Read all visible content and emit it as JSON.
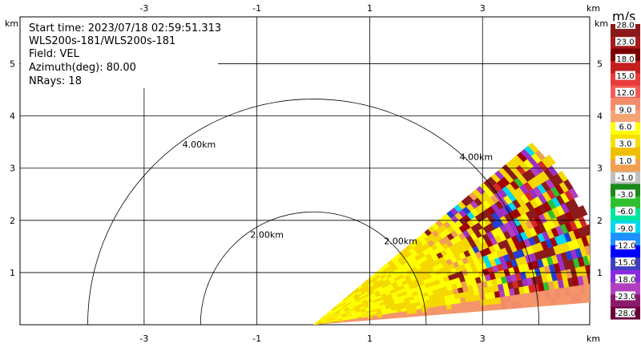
{
  "info": {
    "start_time": "Start time: 2023/07/18 02:59:51.313",
    "instrument": "WLS200s-181/WLS200s-181",
    "field": "Field: VEL",
    "azimuth": "Azimuth(deg): 80.00",
    "nrays": "NRays: 18"
  },
  "chart_data": {
    "type": "heatmap",
    "projection": "RHI-style sector plot",
    "x_unit": "km",
    "y_unit": "km",
    "x_ticks": [
      "-3",
      "-1",
      "1",
      "3"
    ],
    "y_ticks": [
      "1",
      "2",
      "3",
      "4",
      "5"
    ],
    "xlim": [
      -5.2,
      4.9
    ],
    "ylim": [
      0,
      5.9
    ],
    "grid": true,
    "range_rings": [
      {
        "radius_km": 2.0,
        "label": "2.00km"
      },
      {
        "radius_km": 4.0,
        "label": "4.00km"
      }
    ],
    "sector": {
      "az_min_deg": 5,
      "az_max_deg": 42,
      "max_range_km": 5.3
    },
    "colorbar": {
      "title": "m/s",
      "tick_labels": [
        "28.0",
        "23.0",
        "18.0",
        "15.0",
        "12.0",
        "9.0",
        "6.0",
        "3.0",
        "1.0",
        "-1.0",
        "-3.0",
        "-6.0",
        "-9.0",
        "-12.0",
        "-15.0",
        "-18.0",
        "-23.0",
        "-28.0"
      ],
      "colors": [
        "#8b1a1a",
        "#a61c1c",
        "#7a0000",
        "#c41e1e",
        "#e83b3b",
        "#f25c54",
        "#f28c6a",
        "#f6a373",
        "#ffff00",
        "#f5e000",
        "#f0c000",
        "#f0a050",
        "#c0c0c0",
        "#1a8a1a",
        "#2fbf2f",
        "#00e5a0",
        "#00d8f0",
        "#1e90ff",
        "#0000ff",
        "#4040c0",
        "#8a2be2",
        "#b040c0",
        "#8b1a6b",
        "#6b003b"
      ]
    }
  }
}
